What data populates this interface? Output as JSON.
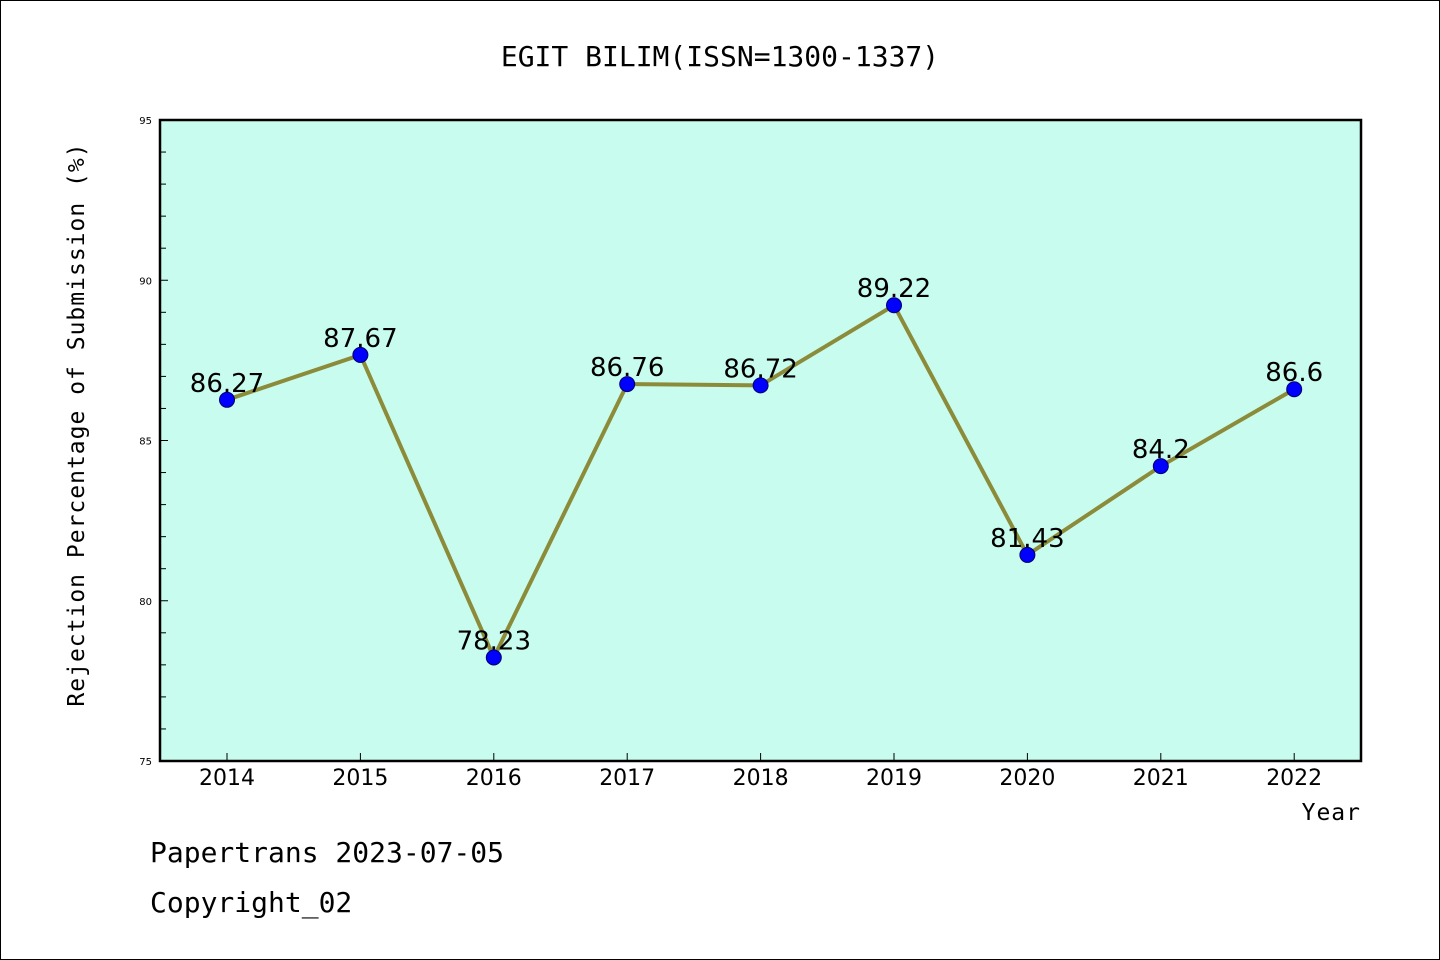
{
  "chart_data": {
    "type": "line",
    "title": "EGIT BILIM(ISSN=1300-1337)",
    "xlabel": "Year",
    "ylabel": "Rejection Percentage of Submission (%)",
    "categories": [
      "2014",
      "2015",
      "2016",
      "2017",
      "2018",
      "2019",
      "2020",
      "2021",
      "2022"
    ],
    "values": [
      86.27,
      87.67,
      78.23,
      86.76,
      86.72,
      89.22,
      81.43,
      84.2,
      86.6
    ],
    "data_labels": [
      "86.27",
      "87.67",
      "78.23",
      "86.76",
      "86.72",
      "89.22",
      "81.43",
      "84.2",
      "86.6"
    ],
    "ylim": [
      75,
      95
    ],
    "yticks": [
      75,
      80,
      85,
      90,
      95
    ],
    "grid": false,
    "colors": {
      "plot_background": "#c8fcee",
      "line": "#8b8b3a",
      "marker": "#0000ff"
    }
  },
  "footer": {
    "line1": "Papertrans 2023-07-05",
    "line2": "Copyright_02"
  }
}
